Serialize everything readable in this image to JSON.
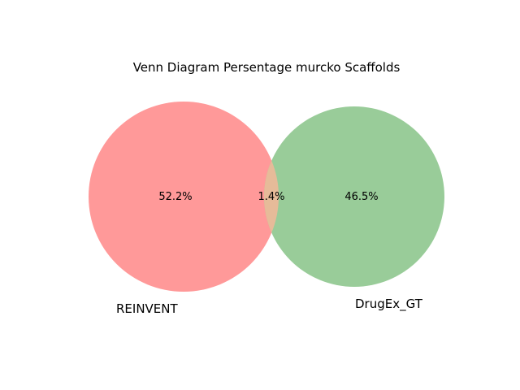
{
  "title": "Venn Diagram Persentage murcko Scaffolds",
  "sets": [
    {
      "name": "REINVENT",
      "color": "#ff9999"
    },
    {
      "name": "DrugEx_GT",
      "color": "#99cc99"
    }
  ],
  "regions": {
    "left_only": "52.2%",
    "intersection": "1.4%",
    "right_only": "46.5%"
  },
  "intersection_color": "#e6bb99"
}
